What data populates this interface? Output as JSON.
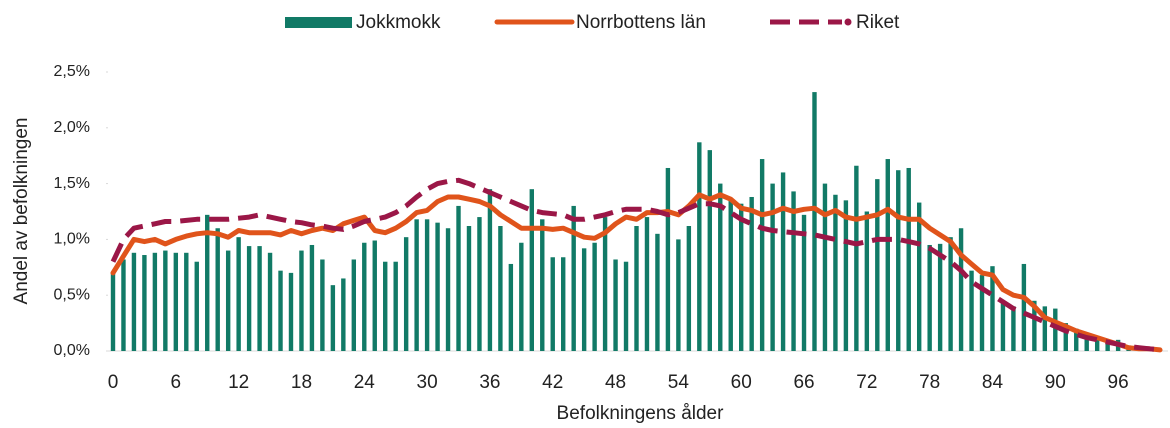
{
  "chart_data": {
    "type": "bar_line",
    "xlabel": "Befolkningens ålder",
    "ylabel": "Andel av befolkningen",
    "categories": [
      "0",
      null,
      null,
      null,
      null,
      null,
      "6",
      null,
      null,
      null,
      null,
      null,
      "12",
      null,
      null,
      null,
      null,
      null,
      "18",
      null,
      null,
      null,
      null,
      null,
      "24",
      null,
      null,
      null,
      null,
      null,
      "30",
      null,
      null,
      null,
      null,
      null,
      "36",
      null,
      null,
      null,
      null,
      null,
      "42",
      null,
      null,
      null,
      null,
      null,
      "48",
      null,
      null,
      null,
      null,
      null,
      "54",
      null,
      null,
      null,
      null,
      null,
      "60",
      null,
      null,
      null,
      null,
      null,
      "66",
      null,
      null,
      null,
      null,
      null,
      "72",
      null,
      null,
      null,
      null,
      null,
      "78",
      null,
      null,
      null,
      null,
      null,
      "84",
      null,
      null,
      null,
      null,
      null,
      "90",
      null,
      null,
      null,
      null,
      null,
      "96",
      null,
      null,
      null,
      null
    ],
    "series": [
      {
        "name": "Jokkmokk",
        "kind": "bar",
        "color": "#117a66",
        "values": [
          0.7,
          0.82,
          0.88,
          0.86,
          0.88,
          0.9,
          0.88,
          0.88,
          0.8,
          1.22,
          1.1,
          0.9,
          1.02,
          0.94,
          0.94,
          0.88,
          0.72,
          0.7,
          0.9,
          0.95,
          0.82,
          0.59,
          0.65,
          0.82,
          0.97,
          0.99,
          0.8,
          0.8,
          1.02,
          1.18,
          1.18,
          1.15,
          1.1,
          1.3,
          1.12,
          1.2,
          1.45,
          1.12,
          0.78,
          0.97,
          1.45,
          1.18,
          0.84,
          0.84,
          1.3,
          0.92,
          0.97,
          1.2,
          0.82,
          0.8,
          1.12,
          1.2,
          1.05,
          1.64,
          1.0,
          1.12,
          1.87,
          1.8,
          1.5,
          1.36,
          1.32,
          1.38,
          1.72,
          1.5,
          1.6,
          1.43,
          1.22,
          2.32,
          1.5,
          1.4,
          1.35,
          1.66,
          1.25,
          1.54,
          1.72,
          1.62,
          1.64,
          1.33,
          0.95,
          0.96,
          1.02,
          1.1,
          0.72,
          0.68,
          0.76,
          0.45,
          0.4,
          0.78,
          0.45,
          0.4,
          0.38,
          0.25,
          0.2,
          0.15,
          0.12,
          0.1,
          0.1,
          0.05,
          0.03,
          0.02,
          0.01
        ]
      },
      {
        "name": "Norrbottens län",
        "kind": "line",
        "color": "#e0541b",
        "values": [
          0.7,
          0.85,
          1.0,
          0.98,
          1.0,
          0.96,
          1.0,
          1.03,
          1.05,
          1.06,
          1.05,
          1.02,
          1.08,
          1.06,
          1.06,
          1.06,
          1.04,
          1.08,
          1.05,
          1.08,
          1.1,
          1.08,
          1.14,
          1.17,
          1.2,
          1.08,
          1.06,
          1.1,
          1.16,
          1.24,
          1.26,
          1.34,
          1.38,
          1.38,
          1.36,
          1.34,
          1.3,
          1.22,
          1.16,
          1.1,
          1.1,
          1.1,
          1.09,
          1.1,
          1.06,
          1.02,
          1.01,
          1.06,
          1.14,
          1.2,
          1.18,
          1.24,
          1.24,
          1.25,
          1.22,
          1.3,
          1.4,
          1.36,
          1.4,
          1.36,
          1.28,
          1.26,
          1.22,
          1.24,
          1.28,
          1.25,
          1.27,
          1.28,
          1.22,
          1.26,
          1.2,
          1.18,
          1.2,
          1.22,
          1.27,
          1.2,
          1.18,
          1.18,
          1.1,
          1.04,
          0.98,
          0.86,
          0.78,
          0.7,
          0.68,
          0.55,
          0.5,
          0.48,
          0.4,
          0.3,
          0.26,
          0.22,
          0.18,
          0.15,
          0.12,
          0.09,
          0.06,
          0.03,
          0.02,
          0.02,
          0.01
        ]
      },
      {
        "name": "Riket",
        "kind": "dashed",
        "color": "#9b1747",
        "values": [
          0.8,
          1.0,
          1.1,
          1.12,
          1.14,
          1.16,
          1.16,
          1.17,
          1.18,
          1.18,
          1.18,
          1.18,
          1.19,
          1.2,
          1.22,
          1.2,
          1.18,
          1.16,
          1.15,
          1.13,
          1.12,
          1.1,
          1.09,
          1.12,
          1.16,
          1.18,
          1.2,
          1.24,
          1.3,
          1.38,
          1.45,
          1.5,
          1.52,
          1.53,
          1.5,
          1.46,
          1.42,
          1.38,
          1.34,
          1.3,
          1.26,
          1.24,
          1.23,
          1.22,
          1.18,
          1.18,
          1.2,
          1.22,
          1.25,
          1.27,
          1.27,
          1.27,
          1.25,
          1.22,
          1.24,
          1.28,
          1.32,
          1.32,
          1.3,
          1.24,
          1.18,
          1.14,
          1.1,
          1.08,
          1.07,
          1.06,
          1.05,
          1.04,
          1.02,
          1.0,
          0.98,
          0.96,
          0.98,
          1.0,
          1.0,
          1.0,
          0.98,
          0.96,
          0.92,
          0.86,
          0.8,
          0.72,
          0.62,
          0.56,
          0.5,
          0.44,
          0.38,
          0.34,
          0.3,
          0.26,
          0.22,
          0.18,
          0.15,
          0.12,
          0.1,
          0.08,
          0.06,
          0.04,
          0.03,
          0.02,
          0.01
        ]
      }
    ],
    "ylim": [
      0,
      2.5
    ],
    "yticks": [
      {
        "value": 0,
        "label": "0,0%"
      },
      {
        "value": 0.5,
        "label": "0,5%"
      },
      {
        "value": 1,
        "label": "1,0%"
      },
      {
        "value": 1.5,
        "label": "1,5%"
      },
      {
        "value": 2,
        "label": "2,0%"
      },
      {
        "value": 2.5,
        "label": "2,5%"
      }
    ],
    "legend": "top"
  }
}
